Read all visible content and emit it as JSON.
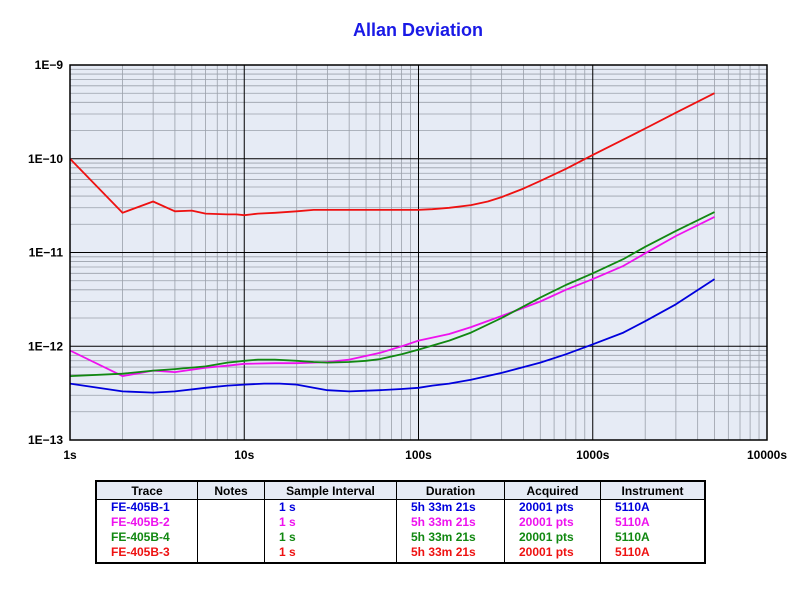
{
  "chart_data": {
    "type": "line",
    "title": "Allan Deviation",
    "x_scale": "log",
    "y_scale": "log",
    "xlim": [
      1,
      10000
    ],
    "ylim": [
      1e-13,
      1e-09
    ],
    "x_tick_labels": [
      "1s",
      "10s",
      "100s",
      "1000s",
      "10000s"
    ],
    "y_tick_labels": [
      "1E−9",
      "1E−10",
      "1E−11",
      "1E−12",
      "1E−13"
    ],
    "grid": true,
    "series": [
      {
        "name": "FE-405B-1",
        "color": "#0000dd",
        "x": [
          1,
          2,
          3,
          4,
          6,
          8,
          10,
          13,
          16,
          20,
          25,
          30,
          40,
          60,
          80,
          100,
          120,
          150,
          200,
          300,
          500,
          700,
          1000,
          1500,
          2000,
          3000,
          5000
        ],
        "y": [
          4e-13,
          3.3e-13,
          3.2e-13,
          3.3e-13,
          3.6e-13,
          3.8e-13,
          3.9e-13,
          4e-13,
          4e-13,
          3.9e-13,
          3.6e-13,
          3.4e-13,
          3.3e-13,
          3.4e-13,
          3.5e-13,
          3.6e-13,
          3.8e-13,
          4e-13,
          4.4e-13,
          5.2e-13,
          6.7e-13,
          8.2e-13,
          1.05e-12,
          1.4e-12,
          1.85e-12,
          2.8e-12,
          5.2e-12
        ]
      },
      {
        "name": "FE-405B-2",
        "color": "#ee11ee",
        "x": [
          1,
          2,
          3,
          4,
          6,
          8,
          10,
          15,
          20,
          25,
          30,
          40,
          60,
          80,
          100,
          150,
          200,
          300,
          500,
          700,
          1000,
          1500,
          2000,
          3000,
          5000
        ],
        "y": [
          9e-13,
          4.8e-13,
          5.5e-13,
          5.3e-13,
          5.9e-13,
          6.2e-13,
          6.5e-13,
          6.6e-13,
          6.6e-13,
          6.7e-13,
          6.8e-13,
          7.2e-13,
          8.5e-13,
          1e-12,
          1.15e-12,
          1.35e-12,
          1.6e-12,
          2.1e-12,
          3e-12,
          4e-12,
          5.2e-12,
          7.2e-12,
          9.8e-12,
          1.5e-11,
          2.4e-11
        ]
      },
      {
        "name": "FE-405B-4",
        "color": "#118811",
        "x": [
          1,
          2,
          3,
          4,
          6,
          8,
          10,
          12,
          15,
          20,
          25,
          30,
          40,
          50,
          60,
          80,
          100,
          150,
          200,
          300,
          500,
          700,
          1000,
          1500,
          2000,
          3000,
          5000
        ],
        "y": [
          4.8e-13,
          5.1e-13,
          5.5e-13,
          5.7e-13,
          6.1e-13,
          6.7e-13,
          7e-13,
          7.2e-13,
          7.2e-13,
          7e-13,
          6.8e-13,
          6.7e-13,
          6.8e-13,
          7e-13,
          7.3e-13,
          8.2e-13,
          9.2e-13,
          1.15e-12,
          1.4e-12,
          2e-12,
          3.3e-12,
          4.5e-12,
          6e-12,
          8.5e-12,
          1.15e-11,
          1.7e-11,
          2.7e-11
        ]
      },
      {
        "name": "FE-405B-3",
        "color": "#ee1111",
        "x": [
          1,
          2,
          3,
          4,
          5,
          6,
          8,
          9,
          10,
          11,
          12,
          15,
          20,
          25,
          30,
          40,
          60,
          80,
          100,
          120,
          150,
          200,
          250,
          300,
          400,
          500,
          700,
          1000,
          1500,
          2000,
          3000,
          5000
        ],
        "y": [
          1e-10,
          2.65e-11,
          3.5e-11,
          2.75e-11,
          2.8e-11,
          2.6e-11,
          2.55e-11,
          2.55e-11,
          2.5e-11,
          2.55e-11,
          2.6e-11,
          2.65e-11,
          2.75e-11,
          2.85e-11,
          2.85e-11,
          2.85e-11,
          2.85e-11,
          2.85e-11,
          2.85e-11,
          2.9e-11,
          3e-11,
          3.2e-11,
          3.5e-11,
          3.9e-11,
          4.8e-11,
          5.8e-11,
          7.8e-11,
          1.1e-10,
          1.6e-10,
          2.1e-10,
          3.1e-10,
          5e-10
        ]
      }
    ]
  },
  "legend_table": {
    "headers": [
      "Trace",
      "Notes",
      "Sample Interval",
      "Duration",
      "Acquired",
      "Instrument"
    ],
    "rows": [
      {
        "trace": "FE-405B-1",
        "notes": "",
        "sample_interval": "1 s",
        "duration": "5h 33m 21s",
        "acquired": "20001 pts",
        "instrument": "5110A",
        "color": "#0000dd"
      },
      {
        "trace": "FE-405B-2",
        "notes": "",
        "sample_interval": "1 s",
        "duration": "5h 33m 21s",
        "acquired": "20001 pts",
        "instrument": "5110A",
        "color": "#ee11ee"
      },
      {
        "trace": "FE-405B-4",
        "notes": "",
        "sample_interval": "1 s",
        "duration": "5h 33m 21s",
        "acquired": "20001 pts",
        "instrument": "5110A",
        "color": "#118811"
      },
      {
        "trace": "FE-405B-3",
        "notes": "",
        "sample_interval": "1 s",
        "duration": "5h 33m 21s",
        "acquired": "20001 pts",
        "instrument": "5110A",
        "color": "#ee1111"
      }
    ]
  }
}
